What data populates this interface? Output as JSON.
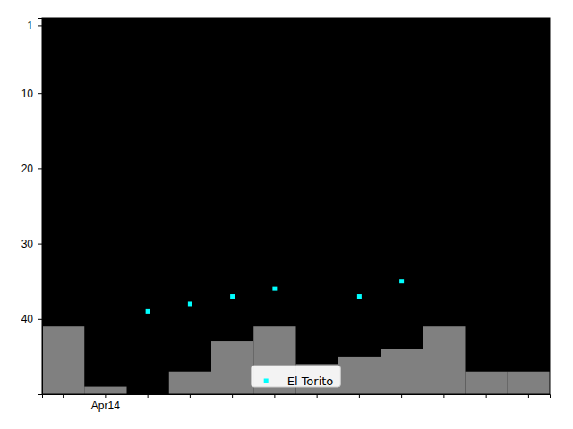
{
  "chart_data": {
    "type": "bar",
    "categories": [
      null,
      "Apr14",
      null,
      null,
      null,
      null,
      null,
      null,
      null,
      null,
      null,
      null
    ],
    "series": [
      {
        "type": "bar",
        "color": "#808080",
        "values": [
          41,
          49,
          50,
          47,
          43,
          41,
          46,
          45,
          44,
          41,
          47,
          47
        ]
      },
      {
        "type": "scatter",
        "name": "El Torito",
        "color": "#00ffff",
        "marker": "square",
        "values": [
          null,
          null,
          39,
          38,
          37,
          36,
          null,
          37,
          35,
          null,
          null,
          null
        ]
      }
    ],
    "ylim": [
      50,
      0
    ],
    "yticks": [
      1,
      10,
      20,
      30,
      40
    ],
    "legend": "lower center"
  }
}
